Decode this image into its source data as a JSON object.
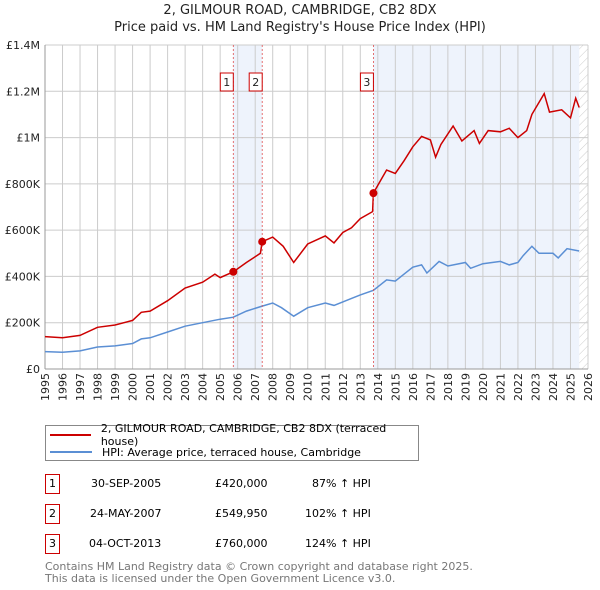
{
  "title": "2, GILMOUR ROAD, CAMBRIDGE, CB2 8DX",
  "subtitle": "Price paid vs. HM Land Registry's House Price Index (HPI)",
  "colors": {
    "property": "#cc0000",
    "hpi": "#5b8fd4",
    "shade": "#eef3fc"
  },
  "chart_data": {
    "type": "line",
    "title": "Price paid vs. HM Land Registry's House Price Index (HPI)",
    "xlim": [
      1995,
      2026
    ],
    "ylim": [
      0,
      1400000
    ],
    "x_ticks": [
      "1995",
      "1996",
      "1997",
      "1998",
      "1999",
      "2000",
      "2001",
      "2002",
      "2003",
      "2004",
      "2005",
      "2006",
      "2007",
      "2008",
      "2009",
      "2010",
      "2011",
      "2012",
      "2013",
      "2014",
      "2015",
      "2016",
      "2017",
      "2018",
      "2019",
      "2020",
      "2021",
      "2022",
      "2023",
      "2024",
      "2025",
      "2026"
    ],
    "y_ticks": [
      {
        "v": 0,
        "label": "£0"
      },
      {
        "v": 200000,
        "label": "£200K"
      },
      {
        "v": 400000,
        "label": "£400K"
      },
      {
        "v": 600000,
        "label": "£600K"
      },
      {
        "v": 800000,
        "label": "£800K"
      },
      {
        "v": 1000000,
        "label": "£1M"
      },
      {
        "v": 1200000,
        "label": "£1.2M"
      },
      {
        "v": 1400000,
        "label": "£1.4M"
      }
    ],
    "shaded_ranges": [
      [
        2005.75,
        2007.4
      ],
      [
        2013.75,
        2025.5
      ]
    ],
    "future_hatch_from": 2025.5,
    "series": [
      {
        "name": "2, GILMOUR ROAD, CAMBRIDGE, CB2 8DX (terraced house)",
        "x": [
          1995,
          1996,
          1997,
          1998,
          1999,
          2000,
          2000.5,
          2001,
          2002,
          2003,
          2004,
          2004.7,
          2005,
          2005.75,
          2006.5,
          2007.3,
          2007.4,
          2008,
          2008.6,
          2009.2,
          2010,
          2011,
          2011.5,
          2012,
          2012.5,
          2013,
          2013.7,
          2013.75,
          2014.5,
          2015,
          2015.5,
          2016,
          2016.5,
          2017,
          2017.3,
          2017.6,
          2018.3,
          2018.8,
          2019.5,
          2019.8,
          2020.3,
          2021,
          2021.5,
          2022,
          2022.5,
          2022.8,
          2023.5,
          2023.8,
          2024.5,
          2025,
          2025.3,
          2025.5
        ],
        "y": [
          140000,
          135000,
          145000,
          180000,
          190000,
          210000,
          245000,
          250000,
          295000,
          350000,
          375000,
          410000,
          395000,
          420000,
          460000,
          500000,
          549950,
          570000,
          530000,
          460000,
          540000,
          575000,
          545000,
          590000,
          610000,
          650000,
          680000,
          760000,
          860000,
          845000,
          900000,
          960000,
          1005000,
          990000,
          915000,
          970000,
          1050000,
          985000,
          1030000,
          975000,
          1030000,
          1025000,
          1040000,
          1000000,
          1030000,
          1100000,
          1190000,
          1110000,
          1120000,
          1085000,
          1170000,
          1130000
        ]
      },
      {
        "name": "HPI: Average price, terraced house, Cambridge",
        "x": [
          1995,
          1996,
          1997,
          1998,
          1999,
          2000,
          2000.5,
          2001,
          2002,
          2003,
          2004,
          2005,
          2005.75,
          2006.5,
          2007.4,
          2008,
          2008.5,
          2009.2,
          2010,
          2011,
          2011.5,
          2012,
          2012.5,
          2013,
          2013.75,
          2014.5,
          2015,
          2015.5,
          2016,
          2016.5,
          2016.8,
          2017.5,
          2018,
          2019,
          2019.3,
          2020,
          2021,
          2021.5,
          2022,
          2022.3,
          2022.8,
          2023.2,
          2024,
          2024.3,
          2024.8,
          2025.5
        ],
        "y": [
          75000,
          72000,
          78000,
          95000,
          100000,
          110000,
          130000,
          135000,
          160000,
          185000,
          200000,
          215000,
          224000,
          250000,
          272000,
          285000,
          265000,
          228000,
          265000,
          285000,
          275000,
          290000,
          305000,
          320000,
          340000,
          385000,
          380000,
          410000,
          440000,
          450000,
          415000,
          465000,
          445000,
          460000,
          435000,
          455000,
          465000,
          450000,
          460000,
          490000,
          530000,
          500000,
          500000,
          480000,
          520000,
          510000
        ]
      }
    ],
    "sales": [
      {
        "id": "1",
        "x": 2005.75,
        "y": 420000
      },
      {
        "id": "2",
        "x": 2007.4,
        "y": 549950
      },
      {
        "id": "3",
        "x": 2013.75,
        "y": 760000
      }
    ]
  },
  "legend": {
    "property": "2, GILMOUR ROAD, CAMBRIDGE, CB2 8DX (terraced house)",
    "hpi": "HPI: Average price, terraced house, Cambridge"
  },
  "transactions": [
    {
      "id": "1",
      "date": "30-SEP-2005",
      "price": "£420,000",
      "hpi": "87% ↑ HPI"
    },
    {
      "id": "2",
      "date": "24-MAY-2007",
      "price": "£549,950",
      "hpi": "102% ↑ HPI"
    },
    {
      "id": "3",
      "date": "04-OCT-2013",
      "price": "£760,000",
      "hpi": "124% ↑ HPI"
    }
  ],
  "footer": {
    "line1": "Contains HM Land Registry data © Crown copyright and database right 2025.",
    "line2": "This data is licensed under the Open Government Licence v3.0."
  }
}
